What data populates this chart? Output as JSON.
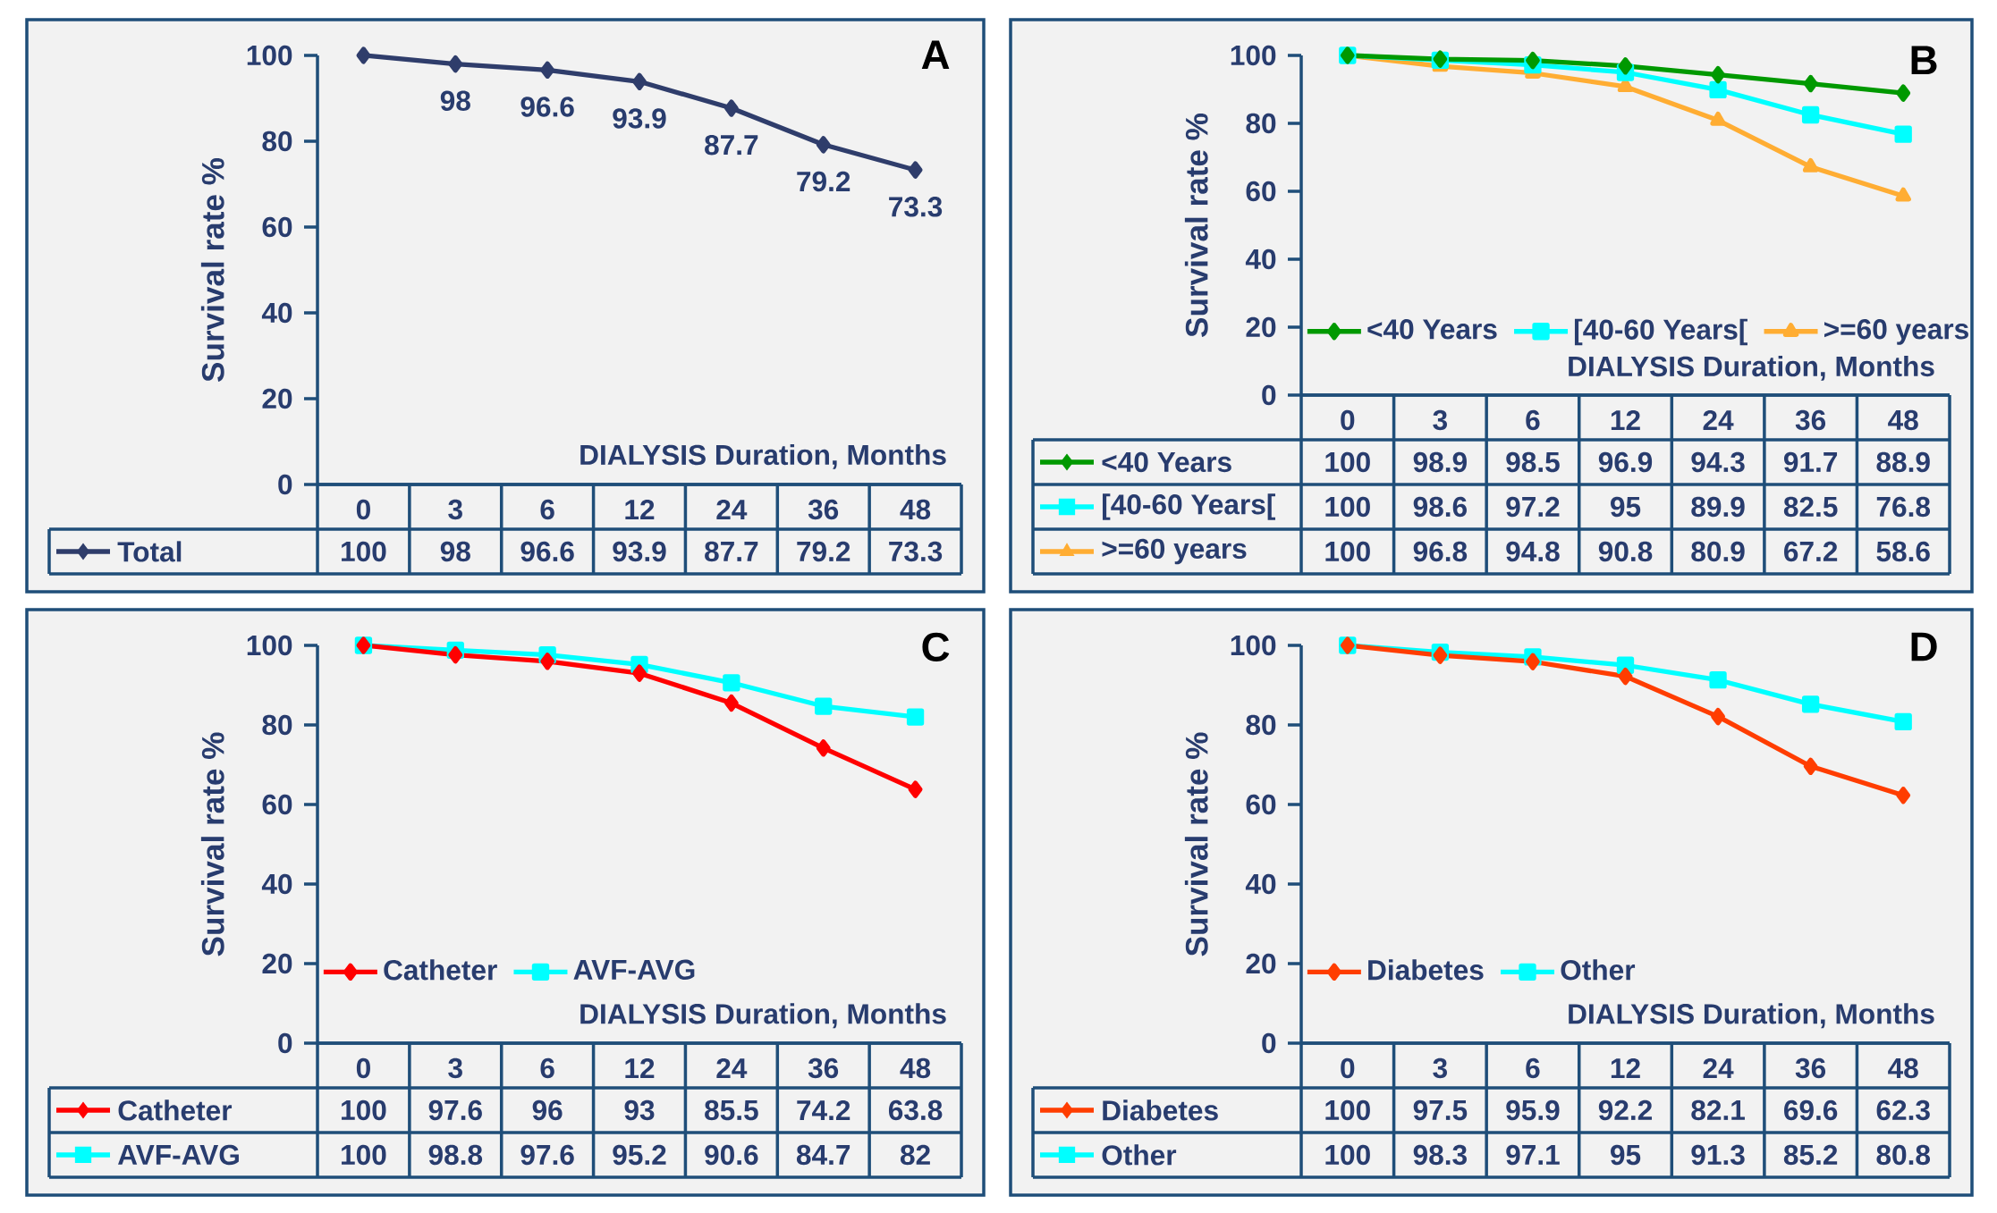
{
  "chart_data": [
    {
      "type": "line",
      "annotations": [
        "A",
        {
          "text": "98",
          "x": "3",
          "y": 98
        },
        {
          "text": "96.6",
          "x": "6",
          "y": 96.6
        },
        {
          "text": "93.9",
          "x": "12",
          "y": 93.9
        },
        {
          "text": "87.7",
          "x": "24",
          "y": 87.7
        },
        {
          "text": "79.2",
          "x": "36",
          "y": 79.2
        },
        {
          "text": "73.3",
          "x": "48",
          "y": 73.3
        }
      ],
      "xlabel": "DIALYSIS Duration, Months",
      "ylabel": "Survival rate %",
      "categories": [
        "0",
        "3",
        "6",
        "12",
        "24",
        "36",
        "48"
      ],
      "ylim": [
        0,
        100
      ],
      "yticks": [
        0,
        20,
        40,
        60,
        80,
        100
      ],
      "legend": "bottom left",
      "data_labels": true,
      "series": [
        {
          "name": "Total",
          "color": "#2f3d6b",
          "marker": "diamond",
          "values": [
            100,
            98,
            96.6,
            93.9,
            87.7,
            79.2,
            73.3
          ]
        }
      ]
    },
    {
      "type": "line",
      "annotations": [
        "B"
      ],
      "xlabel": "DIALYSIS Duration, Months",
      "ylabel": "Survival rate %",
      "categories": [
        "0",
        "3",
        "6",
        "12",
        "24",
        "36",
        "48"
      ],
      "ylim": [
        0,
        100
      ],
      "yticks": [
        0,
        20,
        40,
        60,
        80,
        100
      ],
      "legend": "bottom left",
      "data_labels": true,
      "series": [
        {
          "name": "<40 Years",
          "color": "#009900",
          "marker": "diamond",
          "values": [
            100,
            98.9,
            98.5,
            96.9,
            94.3,
            91.7,
            88.9
          ]
        },
        {
          "name": "[40-60 Years[",
          "color": "#00ffff",
          "marker": "square",
          "values": [
            100,
            98.6,
            97.2,
            95,
            89.9,
            82.5,
            76.8
          ]
        },
        {
          "name": ">=60 years",
          "color": "#ffad33",
          "marker": "triangle",
          "values": [
            100,
            96.8,
            94.8,
            90.8,
            80.9,
            67.2,
            58.6
          ]
        }
      ]
    },
    {
      "type": "line",
      "annotations": [
        "C"
      ],
      "xlabel": "DIALYSIS Duration, Months",
      "ylabel": "Survival rate %",
      "categories": [
        "0",
        "3",
        "6",
        "12",
        "24",
        "36",
        "48"
      ],
      "ylim": [
        0,
        100
      ],
      "yticks": [
        0,
        20,
        40,
        60,
        80,
        100
      ],
      "legend": "bottom left",
      "data_labels": true,
      "series": [
        {
          "name": "Catheter",
          "color": "#ff0000",
          "marker": "diamond",
          "values": [
            100,
            97.6,
            96,
            93,
            85.5,
            74.2,
            63.8
          ]
        },
        {
          "name": "AVF-AVG",
          "color": "#00ffff",
          "marker": "square",
          "values": [
            100,
            98.8,
            97.6,
            95.2,
            90.6,
            84.7,
            82
          ]
        }
      ]
    },
    {
      "type": "line",
      "annotations": [
        "D"
      ],
      "xlabel": "DIALYSIS Duration, Months",
      "ylabel": "Survival rate %",
      "categories": [
        "0",
        "3",
        "6",
        "12",
        "24",
        "36",
        "48"
      ],
      "ylim": [
        0,
        100
      ],
      "yticks": [
        0,
        20,
        40,
        60,
        80,
        100
      ],
      "legend": "bottom left",
      "data_labels": true,
      "series": [
        {
          "name": "Diabetes",
          "color": "#ff3d00",
          "marker": "diamond",
          "values": [
            100,
            97.5,
            95.9,
            92.2,
            82.1,
            69.6,
            62.3
          ]
        },
        {
          "name": "Other",
          "color": "#00ffff",
          "marker": "square",
          "values": [
            100,
            98.3,
            97.1,
            95,
            91.3,
            85.2,
            80.8
          ]
        }
      ]
    }
  ]
}
